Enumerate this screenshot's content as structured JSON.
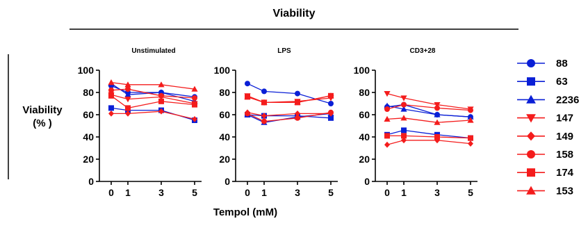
{
  "header": {
    "title": "Viability"
  },
  "yaxis_label": [
    "Viability",
    "(% )"
  ],
  "xaxis_label": "Tempol (mM)",
  "colors": {
    "blue": "#0a1fd6",
    "red": "#f41c1c",
    "black": "#000000"
  },
  "legend": [
    {
      "name": "88",
      "color": "blue",
      "marker": "circle"
    },
    {
      "name": "63",
      "color": "blue",
      "marker": "square"
    },
    {
      "name": "2236",
      "color": "blue",
      "marker": "triangle-up"
    },
    {
      "name": "147",
      "color": "red",
      "marker": "triangle-down"
    },
    {
      "name": "149",
      "color": "red",
      "marker": "diamond"
    },
    {
      "name": "158",
      "color": "red",
      "marker": "circle"
    },
    {
      "name": "174",
      "color": "red",
      "marker": "square"
    },
    {
      "name": "153",
      "color": "red",
      "marker": "triangle-up"
    }
  ],
  "chart_data": [
    {
      "type": "line",
      "title": "Unstimulated",
      "x": [
        "0",
        "1",
        "3",
        "5"
      ],
      "yticks": [
        "0",
        "20",
        "40",
        "60",
        "80",
        "100"
      ],
      "ylim": [
        0,
        100
      ],
      "series": [
        {
          "name": "88",
          "values": [
            86,
            80,
            80,
            76
          ]
        },
        {
          "name": "63",
          "values": [
            66,
            64,
            64,
            55
          ]
        },
        {
          "name": "2236",
          "values": [
            88,
            78,
            80,
            72
          ]
        },
        {
          "name": "147",
          "values": [
            78,
            74,
            76,
            70
          ]
        },
        {
          "name": "149",
          "values": [
            61,
            61,
            63,
            56
          ]
        },
        {
          "name": "158",
          "values": [
            82,
            83,
            77,
            75
          ]
        },
        {
          "name": "174",
          "values": [
            77,
            66,
            72,
            69
          ]
        },
        {
          "name": "153",
          "values": [
            89,
            87,
            87,
            83
          ]
        }
      ]
    },
    {
      "type": "line",
      "title": "LPS",
      "x": [
        "0",
        "1",
        "3",
        "5"
      ],
      "yticks": [
        "0",
        "20",
        "40",
        "60",
        "80",
        "100"
      ],
      "ylim": [
        0,
        100
      ],
      "series": [
        {
          "name": "88",
          "values": [
            88,
            81,
            79,
            70
          ]
        },
        {
          "name": "63",
          "values": [
            60,
            59,
            59,
            57
          ]
        },
        {
          "name": "2236",
          "values": [
            60,
            53,
            58,
            61
          ]
        },
        {
          "name": "147",
          "values": [
            77,
            71,
            72,
            75
          ]
        },
        {
          "name": "149",
          "values": [
            62,
            59,
            61,
            61
          ]
        },
        {
          "name": "158",
          "values": [
            61,
            54,
            57,
            62
          ]
        },
        {
          "name": "174",
          "values": [
            76,
            71,
            71,
            77
          ]
        },
        {
          "name": "153",
          "values": [
            76,
            71,
            71,
            77
          ]
        }
      ]
    },
    {
      "type": "line",
      "title": "CD3+28",
      "x": [
        "0",
        "1",
        "3",
        "5"
      ],
      "yticks": [
        "0",
        "20",
        "40",
        "60",
        "80",
        "100"
      ],
      "ylim": [
        0,
        100
      ],
      "series": [
        {
          "name": "88",
          "values": [
            67,
            69,
            60,
            58
          ]
        },
        {
          "name": "63",
          "values": [
            42,
            46,
            42,
            39
          ]
        },
        {
          "name": "2236",
          "values": [
            68,
            65,
            60,
            58
          ]
        },
        {
          "name": "147",
          "values": [
            79,
            75,
            69,
            65
          ]
        },
        {
          "name": "149",
          "values": [
            33,
            37,
            37,
            34
          ]
        },
        {
          "name": "158",
          "values": [
            65,
            69,
            66,
            64
          ]
        },
        {
          "name": "174",
          "values": [
            41,
            41,
            40,
            39
          ]
        },
        {
          "name": "153",
          "values": [
            56,
            57,
            53,
            55
          ]
        }
      ]
    }
  ]
}
